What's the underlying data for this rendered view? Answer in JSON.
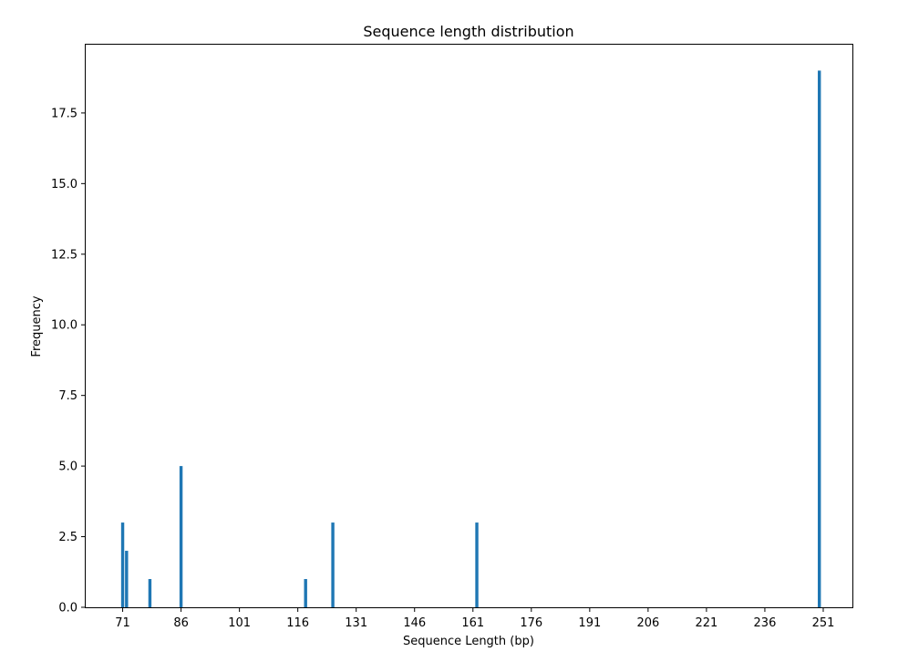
{
  "chart_data": {
    "type": "bar",
    "title": "Sequence length distribution",
    "xlabel": "Sequence Length (bp)",
    "ylabel": "Frequency",
    "xlim": [
      61.5,
      258.5
    ],
    "ylim": [
      0,
      19.95
    ],
    "xticks": [
      71,
      86,
      101,
      116,
      131,
      146,
      161,
      176,
      191,
      206,
      221,
      236,
      251
    ],
    "yticks": [
      0,
      2.5,
      5,
      7.5,
      10,
      12.5,
      15,
      17.5
    ],
    "ytick_labels": [
      "0.0",
      "2.5",
      "5.0",
      "7.5",
      "10.0",
      "12.5",
      "15.0",
      "17.5"
    ],
    "bar_width": 0.8,
    "bar_color": "#1f77b4",
    "grid": false,
    "points": [
      {
        "x": 71,
        "y": 3
      },
      {
        "x": 72,
        "y": 2
      },
      {
        "x": 78,
        "y": 1
      },
      {
        "x": 86,
        "y": 5
      },
      {
        "x": 118,
        "y": 1
      },
      {
        "x": 125,
        "y": 3
      },
      {
        "x": 162,
        "y": 3
      },
      {
        "x": 250,
        "y": 19
      }
    ]
  }
}
